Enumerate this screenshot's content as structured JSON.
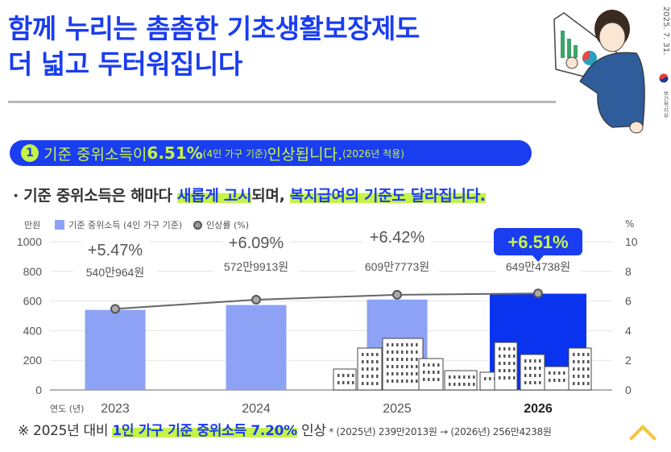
{
  "header": {
    "title_line1": "함께 누리는 촘촘한 기초생활보장제도",
    "title_line2": "더 넓고 두터워집니다",
    "date": "2025. 7. 31.",
    "ministry": "보건복지부"
  },
  "banner": {
    "number": "1",
    "text_main": "기준 중위소득이 ",
    "text_rate": "6.51%",
    "text_basis": "(4인 가구 기준)",
    "text_after": " 인상됩니다.",
    "text_applied": "(2026년 적용)"
  },
  "bullet": {
    "prefix": "· 기준 중위소득은 해마다 ",
    "highlight1": "새롭게 고시",
    "middle": "되며, ",
    "highlight2": "복지급여의 기준도 달라집니다."
  },
  "footer": {
    "prefix": "※ 2025년 대비 ",
    "highlight": "1인 가구 기준 중위소득 7.20%",
    "suffix": " 인상",
    "detail": " * (2025년) 239만2013원 → (2026년) 256만4238원"
  },
  "colors": {
    "brand_blue": "#1a3df0",
    "lime": "#c6f34a",
    "bar_light": "#8da2f5",
    "bar_current": "#0a33f0",
    "line": "#666666"
  },
  "chart_data": {
    "type": "bar",
    "title": "",
    "categories": [
      "2023",
      "2024",
      "2025",
      "2026"
    ],
    "xlabel": "연도 (년)",
    "ylabel": "만원",
    "y2label": "%",
    "ylim": [
      0,
      1000
    ],
    "y2lim": [
      0,
      10
    ],
    "yticks": [
      "0",
      "200",
      "400",
      "600",
      "800",
      "1000"
    ],
    "y2ticks": [
      "0",
      "2",
      "4",
      "6",
      "8",
      "10"
    ],
    "legend": [
      "기준 중위소득 (4인 가구 기준)",
      "인상률 (%)"
    ],
    "legend_position": "top-left",
    "grid": true,
    "series": [
      {
        "name": "기준 중위소득 (4인 가구 기준)",
        "type": "bar",
        "values": [
          540.0964,
          572.9913,
          609.7773,
          649.4738
        ],
        "labels": [
          "540만964원",
          "572만9913원",
          "609만7773원",
          "649만4738원"
        ]
      },
      {
        "name": "인상률 (%)",
        "type": "line",
        "axis": "right",
        "values": [
          5.47,
          6.09,
          6.42,
          6.51
        ],
        "labels": [
          "+5.47%",
          "+6.09%",
          "+6.42%",
          "+6.51%"
        ]
      }
    ],
    "highlight_category": "2026"
  }
}
